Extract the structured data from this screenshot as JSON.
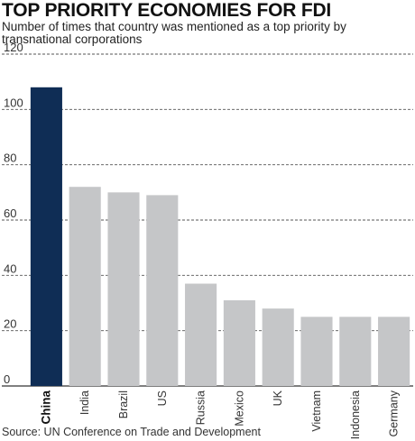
{
  "chart_data": {
    "type": "bar",
    "title": "TOP PRIORITY ECONOMIES FOR FDI",
    "subtitle": "Number of times that country was mentioned as a top priority by transnational corporations",
    "categories": [
      "China",
      "India",
      "Brazil",
      "US",
      "Russia",
      "Mexico",
      "UK",
      "Vietnam",
      "Indonesia",
      "Germany"
    ],
    "values": [
      108,
      72,
      70,
      69,
      37,
      31,
      28,
      25,
      25,
      25
    ],
    "highlight_index": 0,
    "ylim": [
      0,
      120
    ],
    "yticks": [
      0,
      20,
      40,
      60,
      80,
      100,
      120
    ],
    "grid": "dashed-horizontal",
    "xlabel": "",
    "ylabel": "",
    "source": "Source: UN Conference on Trade and Development"
  },
  "colors": {
    "highlight_bar": "#0f2d55",
    "bar": "#c5c6c8",
    "grid": "#555555"
  }
}
